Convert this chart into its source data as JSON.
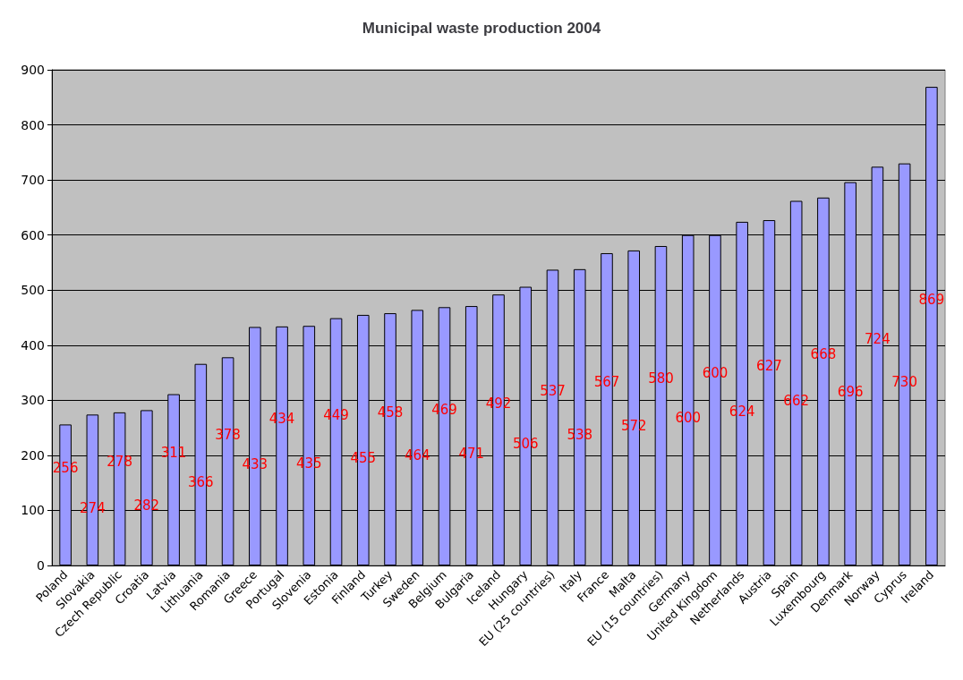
{
  "chart_data": {
    "type": "bar",
    "title": "Municipal waste production 2004",
    "categories": [
      "Poland",
      "Slovakia",
      "Czech Republic",
      "Croatia",
      "Latvia",
      "Lithuania",
      "Romania",
      "Greece",
      "Portugal",
      "Slovenia",
      "Estonia",
      "Finland",
      "Turkey",
      "Sweden",
      "Belgium",
      "Bulgaria",
      "Iceland",
      "Hungary",
      "EU (25 countries)",
      "Italy",
      "France",
      "Malta",
      "EU (15 countries)",
      "Germany",
      "United Kingdom",
      "Netherlands",
      "Austria",
      "Spain",
      "Luxembourg",
      "Denmark",
      "Norway",
      "Cyprus",
      "Ireland"
    ],
    "values": [
      256,
      274,
      278,
      282,
      311,
      366,
      378,
      433,
      434,
      435,
      449,
      455,
      458,
      464,
      469,
      471,
      492,
      506,
      537,
      538,
      567,
      572,
      580,
      600,
      600,
      624,
      627,
      662,
      668,
      696,
      724,
      730,
      869
    ],
    "color": "#9999ff",
    "ylim": [
      0,
      900
    ],
    "yticks": [
      0,
      100,
      200,
      300,
      400,
      500,
      600,
      700,
      800,
      900
    ],
    "grid": "y",
    "data_labels": true
  }
}
